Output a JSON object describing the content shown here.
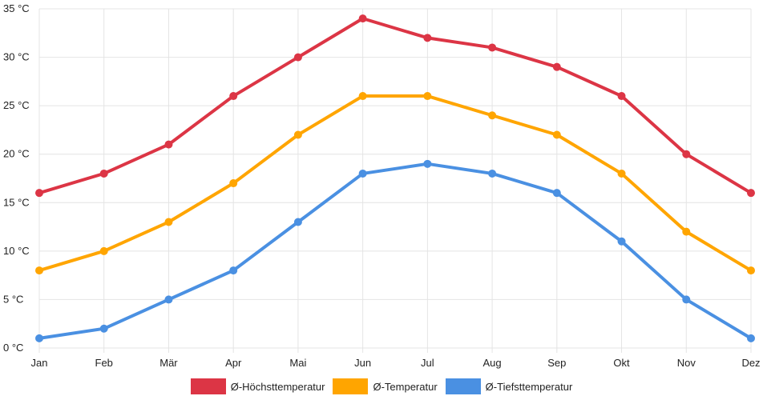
{
  "chart_data": {
    "type": "line",
    "categories": [
      "Jan",
      "Feb",
      "Mär",
      "Apr",
      "Mai",
      "Jun",
      "Jul",
      "Aug",
      "Sep",
      "Okt",
      "Nov",
      "Dez"
    ],
    "series": [
      {
        "name": "Ø-Höchsttemperatur",
        "color": "#dc3545",
        "values": [
          16,
          18,
          21,
          26,
          30,
          34,
          32,
          31,
          29,
          26,
          20,
          16
        ]
      },
      {
        "name": "Ø-Temperatur",
        "color": "#ffa500",
        "values": [
          8,
          10,
          13,
          17,
          22,
          26,
          26,
          24,
          22,
          18,
          12,
          8
        ]
      },
      {
        "name": "Ø-Tiefsttemperatur",
        "color": "#4a90e2",
        "values": [
          1,
          2,
          5,
          8,
          13,
          18,
          19,
          18,
          16,
          11,
          5,
          1
        ]
      }
    ],
    "y_ticks": [
      "0 °C",
      "5 °C",
      "10 °C",
      "15 °C",
      "20 °C",
      "25 °C",
      "30 °C",
      "35 °C"
    ],
    "ylim": [
      0,
      35
    ],
    "grid": true,
    "legend_position": "bottom"
  }
}
